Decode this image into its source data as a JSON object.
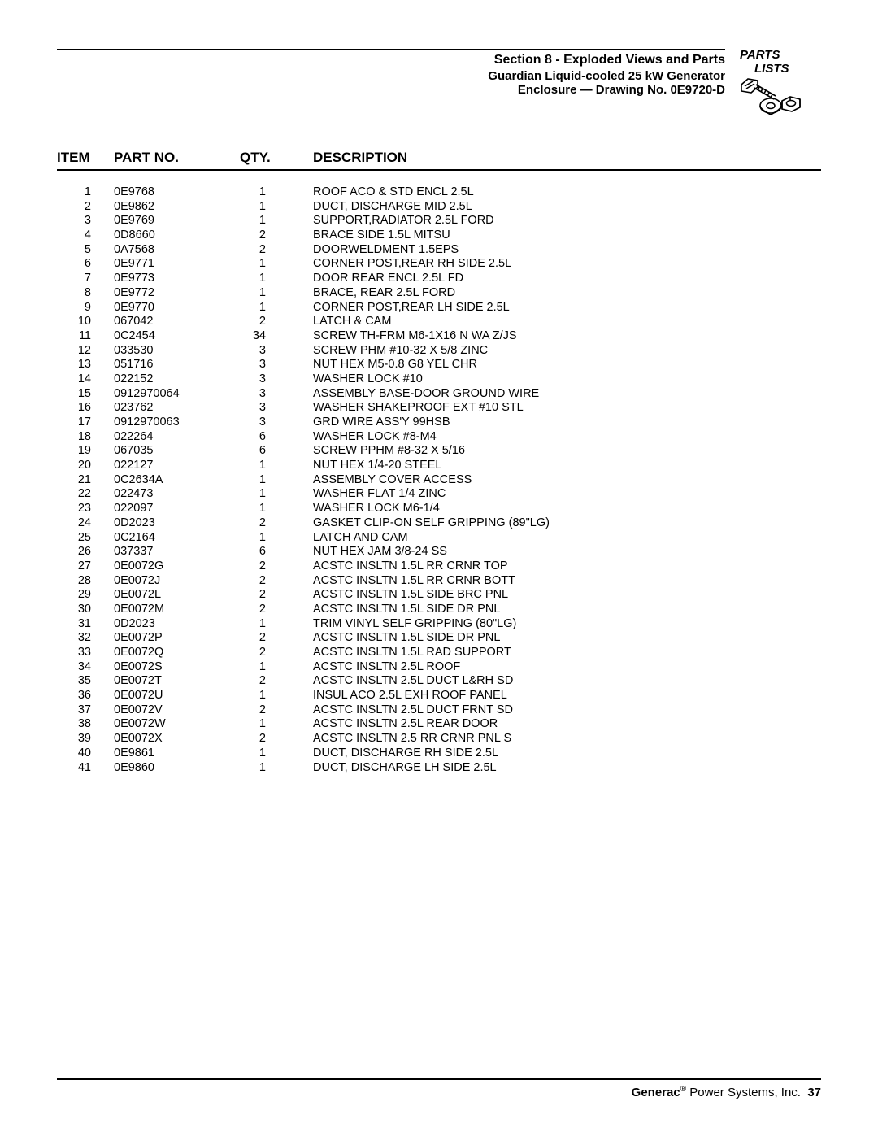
{
  "header": {
    "title_line1": "Section 8 - Exploded Views and Parts",
    "title_line2": "Guardian Liquid-cooled 25 kW Generator",
    "title_line3": "Enclosure — Drawing No. 0E9720-D",
    "icon_label_line1": "PARTS",
    "icon_label_line2": "LISTS"
  },
  "columns": {
    "item": "ITEM",
    "part": "PART NO.",
    "qty": "QTY.",
    "desc": "DESCRIPTION"
  },
  "rows": [
    {
      "item": "1",
      "part": "0E9768",
      "qty": "1",
      "desc": "ROOF ACO & STD ENCL 2.5L"
    },
    {
      "item": "2",
      "part": "0E9862",
      "qty": "1",
      "desc": "DUCT, DISCHARGE MID 2.5L"
    },
    {
      "item": "3",
      "part": "0E9769",
      "qty": "1",
      "desc": "SUPPORT,RADIATOR 2.5L FORD"
    },
    {
      "item": "4",
      "part": "0D8660",
      "qty": "2",
      "desc": "BRACE SIDE 1.5L MITSU"
    },
    {
      "item": "5",
      "part": "0A7568",
      "qty": "2",
      "desc": "DOORWELDMENT 1.5EPS"
    },
    {
      "item": "6",
      "part": "0E9771",
      "qty": "1",
      "desc": "CORNER POST,REAR RH SIDE 2.5L"
    },
    {
      "item": "7",
      "part": "0E9773",
      "qty": "1",
      "desc": "DOOR REAR ENCL 2.5L FD"
    },
    {
      "item": "8",
      "part": "0E9772",
      "qty": "1",
      "desc": "BRACE, REAR 2.5L FORD"
    },
    {
      "item": "9",
      "part": "0E9770",
      "qty": "1",
      "desc": "CORNER POST,REAR LH SIDE 2.5L"
    },
    {
      "item": "10",
      "part": "067042",
      "qty": "2",
      "desc": "LATCH & CAM"
    },
    {
      "item": "11",
      "part": "0C2454",
      "qty": "34",
      "desc": "SCREW TH-FRM M6-1X16 N WA Z/JS"
    },
    {
      "item": "12",
      "part": "033530",
      "qty": "3",
      "desc": "SCREW PHM #10-32 X 5/8 ZINC"
    },
    {
      "item": "13",
      "part": "051716",
      "qty": "3",
      "desc": "NUT HEX M5-0.8 G8 YEL CHR"
    },
    {
      "item": "14",
      "part": "022152",
      "qty": "3",
      "desc": "WASHER LOCK #10"
    },
    {
      "item": "15",
      "part": "0912970064",
      "qty": "3",
      "desc": "ASSEMBLY BASE-DOOR GROUND WIRE"
    },
    {
      "item": "16",
      "part": "023762",
      "qty": "3",
      "desc": "WASHER SHAKEPROOF EXT #10 STL"
    },
    {
      "item": "17",
      "part": "0912970063",
      "qty": "3",
      "desc": "GRD WIRE ASS'Y 99HSB"
    },
    {
      "item": "18",
      "part": "022264",
      "qty": "6",
      "desc": "WASHER LOCK #8-M4"
    },
    {
      "item": "19",
      "part": "067035",
      "qty": "6",
      "desc": "SCREW PPHM #8-32 X 5/16"
    },
    {
      "item": "20",
      "part": "022127",
      "qty": "1",
      "desc": "NUT HEX 1/4-20 STEEL"
    },
    {
      "item": "21",
      "part": "0C2634A",
      "qty": "1",
      "desc": "ASSEMBLY COVER ACCESS"
    },
    {
      "item": "22",
      "part": "022473",
      "qty": "1",
      "desc": "WASHER FLAT 1/4 ZINC"
    },
    {
      "item": "23",
      "part": "022097",
      "qty": "1",
      "desc": "WASHER LOCK M6-1/4"
    },
    {
      "item": "24",
      "part": "0D2023",
      "qty": "2",
      "desc": "GASKET CLIP-ON SELF GRIPPING (89\"LG)"
    },
    {
      "item": "25",
      "part": "0C2164",
      "qty": "1",
      "desc": "LATCH AND CAM"
    },
    {
      "item": "26",
      "part": "037337",
      "qty": "6",
      "desc": "NUT HEX JAM 3/8-24 SS"
    },
    {
      "item": "27",
      "part": "0E0072G",
      "qty": "2",
      "desc": "ACSTC INSLTN 1.5L RR CRNR TOP"
    },
    {
      "item": "28",
      "part": "0E0072J",
      "qty": "2",
      "desc": "ACSTC INSLTN 1.5L RR CRNR BOTT"
    },
    {
      "item": "29",
      "part": "0E0072L",
      "qty": "2",
      "desc": "ACSTC INSLTN 1.5L SIDE BRC PNL"
    },
    {
      "item": "30",
      "part": "0E0072M",
      "qty": "2",
      "desc": "ACSTC INSLTN 1.5L SIDE DR PNL"
    },
    {
      "item": "31",
      "part": "0D2023",
      "qty": "1",
      "desc": "TRIM VINYL SELF GRIPPING (80\"LG)"
    },
    {
      "item": "32",
      "part": "0E0072P",
      "qty": "2",
      "desc": "ACSTC INSLTN 1.5L SIDE DR PNL"
    },
    {
      "item": "33",
      "part": "0E0072Q",
      "qty": "2",
      "desc": "ACSTC INSLTN 1.5L RAD SUPPORT"
    },
    {
      "item": "34",
      "part": "0E0072S",
      "qty": "1",
      "desc": "ACSTC INSLTN 2.5L ROOF"
    },
    {
      "item": "35",
      "part": "0E0072T",
      "qty": "2",
      "desc": "ACSTC INSLTN 2.5L DUCT L&RH SD"
    },
    {
      "item": "36",
      "part": "0E0072U",
      "qty": "1",
      "desc": "INSUL ACO 2.5L EXH ROOF PANEL"
    },
    {
      "item": "37",
      "part": "0E0072V",
      "qty": "2",
      "desc": "ACSTC INSLTN 2.5L DUCT FRNT SD"
    },
    {
      "item": "38",
      "part": "0E0072W",
      "qty": "1",
      "desc": "ACSTC INSLTN 2.5L REAR DOOR"
    },
    {
      "item": "39",
      "part": "0E0072X",
      "qty": "2",
      "desc": "ACSTC INSLTN 2.5 RR CRNR PNL S"
    },
    {
      "item": "40",
      "part": "0E9861",
      "qty": "1",
      "desc": "DUCT, DISCHARGE RH SIDE 2.5L"
    },
    {
      "item": "41",
      "part": "0E9860",
      "qty": "1",
      "desc": "DUCT, DISCHARGE LH SIDE 2.5L"
    }
  ],
  "footer": {
    "brand": "Generac",
    "reg": "®",
    "company": " Power Systems, Inc.",
    "page": "37"
  }
}
